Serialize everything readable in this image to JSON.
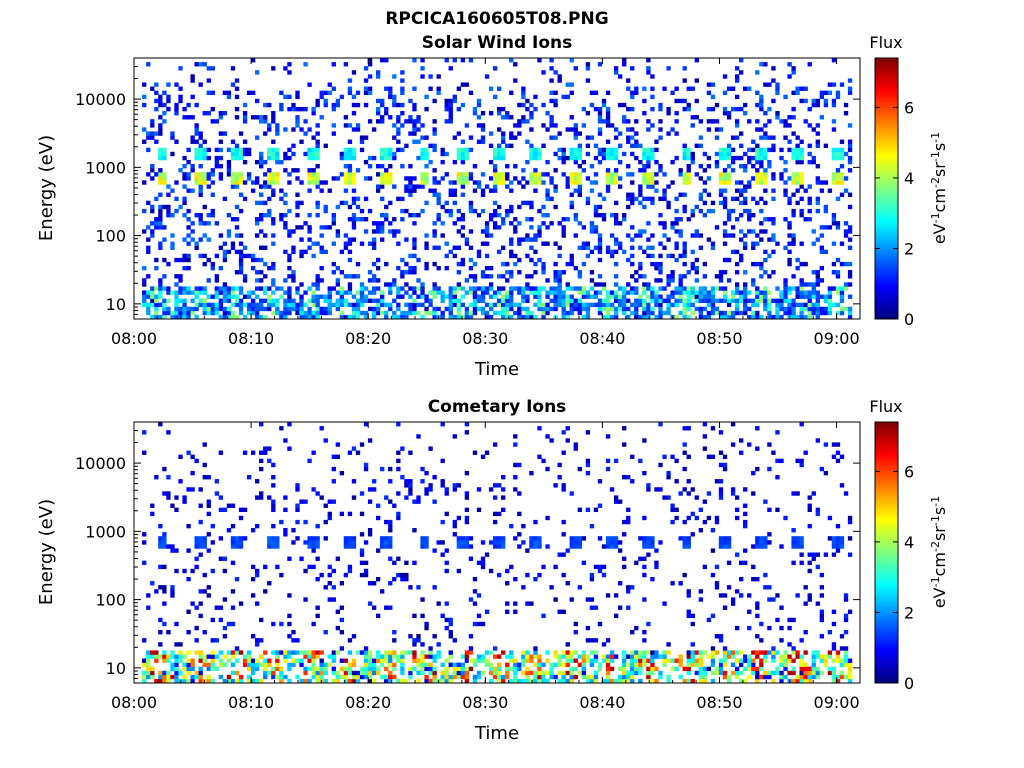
{
  "figure_title": "RPCICA160605T08.PNG",
  "colors": {
    "colormap": [
      "#00007f",
      "#0000ff",
      "#007fff",
      "#00ffff",
      "#7fff7f",
      "#ffff00",
      "#ff7f00",
      "#ff0000",
      "#7f0000"
    ]
  },
  "chart_data": [
    {
      "type": "heatmap",
      "title": "Solar Wind Ions",
      "xlabel": "Time",
      "ylabel": "Energy (eV)",
      "x_range": [
        "08:00",
        "09:02"
      ],
      "x_ticks": [
        "08:00",
        "08:10",
        "08:20",
        "08:30",
        "08:40",
        "08:50",
        "09:00"
      ],
      "y_scale": "log",
      "y_range": [
        6,
        40000
      ],
      "y_ticks": [
        10,
        100,
        1000,
        10000
      ],
      "y_tick_labels": [
        "10",
        "100",
        "1000",
        "10000"
      ],
      "colorbar": {
        "title": "Flux",
        "label": "eV-1cm-2sr-1s-1",
        "label_parts": {
          "b1": "eV",
          "e1": "-1",
          "b2": "cm",
          "e2": "-2",
          "b3": "sr",
          "e3": "-1",
          "b4": "s",
          "e4": "-1"
        },
        "range": [
          0,
          7.4
        ],
        "ticks": [
          0,
          2,
          4,
          6
        ],
        "tick_labels": [
          "0",
          "2",
          "4",
          "6"
        ]
      },
      "sweep_times_min": [
        2.4,
        5.6,
        8.8,
        12.0,
        15.2,
        18.4,
        21.6,
        24.8,
        28.0,
        31.2,
        34.4,
        37.6,
        40.8,
        44.0,
        47.2,
        50.4,
        53.6,
        56.8,
        60.0
      ],
      "features": [
        {
          "name": "solar wind peak",
          "energy_eV": 700,
          "flux": 4.5
        },
        {
          "name": "solar wind alpha",
          "energy_eV": 1500,
          "flux": 3.0
        },
        {
          "name": "low energy band",
          "energy_eV": 10,
          "flux": 2.5
        }
      ],
      "background_flux": 1.0
    },
    {
      "type": "heatmap",
      "title": "Cometary Ions",
      "xlabel": "Time",
      "ylabel": "Energy (eV)",
      "x_range": [
        "08:00",
        "09:02"
      ],
      "x_ticks": [
        "08:00",
        "08:10",
        "08:20",
        "08:30",
        "08:40",
        "08:50",
        "09:00"
      ],
      "y_scale": "log",
      "y_range": [
        6,
        40000
      ],
      "y_ticks": [
        10,
        100,
        1000,
        10000
      ],
      "y_tick_labels": [
        "10",
        "100",
        "1000",
        "10000"
      ],
      "colorbar": {
        "title": "Flux",
        "label": "eV-1cm-2sr-1s-1",
        "label_parts": {
          "b1": "eV",
          "e1": "-1",
          "b2": "cm",
          "e2": "-2",
          "b3": "sr",
          "e3": "-1",
          "b4": "s",
          "e4": "-1"
        },
        "range": [
          0,
          7.4
        ],
        "ticks": [
          0,
          2,
          4,
          6
        ],
        "tick_labels": [
          "0",
          "2",
          "4",
          "6"
        ]
      },
      "sweep_times_min": [
        2.4,
        5.6,
        8.8,
        12.0,
        15.2,
        18.4,
        21.6,
        24.8,
        28.0,
        31.2,
        34.4,
        37.6,
        40.8,
        44.0,
        47.2,
        50.4,
        53.6,
        56.8,
        60.0
      ],
      "features": [
        {
          "name": "solar wind peak",
          "energy_eV": 700,
          "flux": 1.5
        },
        {
          "name": "low energy band",
          "energy_eV": 10,
          "flux": 4.5
        }
      ],
      "background_flux": 0.7
    }
  ]
}
